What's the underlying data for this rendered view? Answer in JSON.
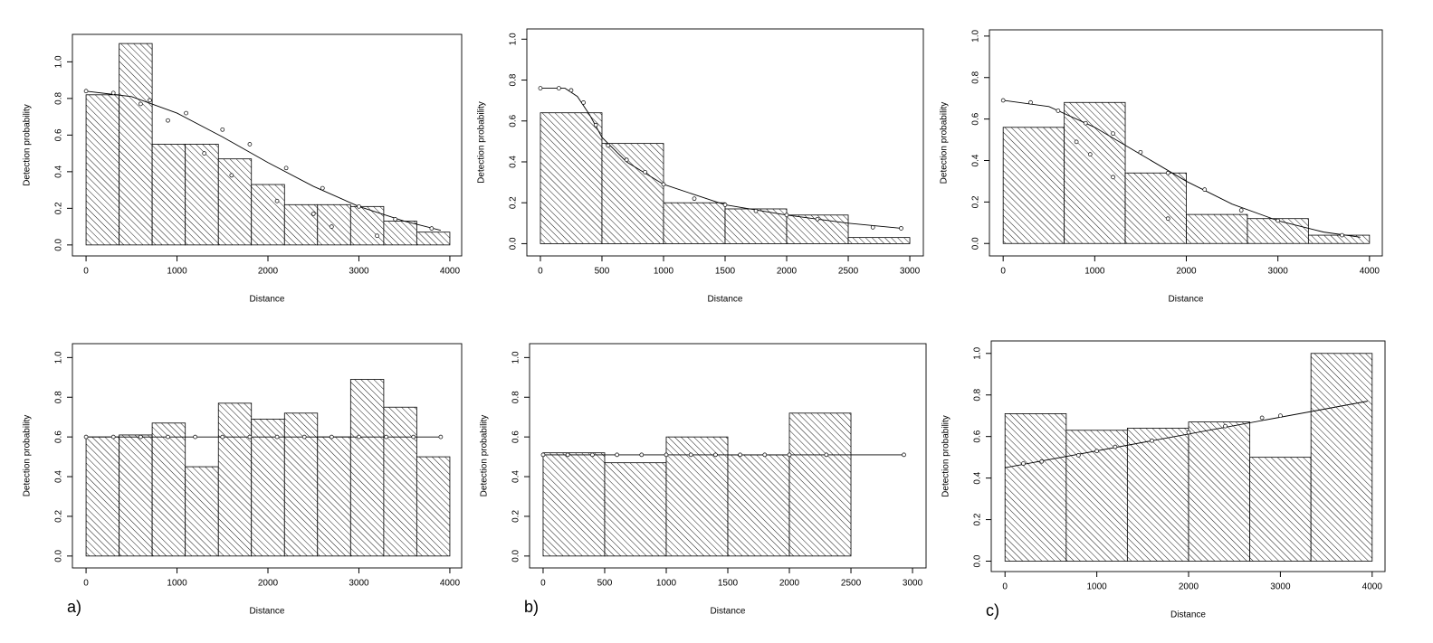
{
  "chart_data": [
    {
      "type": "histogram",
      "xlabel": "Distance",
      "ylabel": "Detection probability",
      "bins": [
        0,
        364,
        727,
        1091,
        1455,
        1818,
        2182,
        2545,
        2909,
        3273,
        3636,
        4000
      ],
      "values": [
        0.82,
        1.1,
        0.55,
        0.55,
        0.47,
        0.33,
        0.22,
        0.22,
        0.21,
        0.13,
        0.07
      ],
      "fit": {
        "x": [
          0,
          500,
          1000,
          1500,
          2000,
          2500,
          3000,
          3500,
          3900
        ],
        "values": [
          0.84,
          0.81,
          0.72,
          0.59,
          0.45,
          0.32,
          0.21,
          0.13,
          0.08
        ]
      },
      "points": {
        "x": [
          0,
          300,
          700,
          1100,
          1500,
          1800,
          2200,
          2600,
          3000,
          3400,
          3800,
          600,
          900,
          1300,
          1600,
          2100,
          2500,
          2700,
          3200
        ],
        "values": [
          0.84,
          0.83,
          0.79,
          0.72,
          0.63,
          0.55,
          0.42,
          0.31,
          0.21,
          0.14,
          0.09,
          0.77,
          0.68,
          0.5,
          0.38,
          0.24,
          0.17,
          0.1,
          0.05
        ]
      },
      "xlim": [
        -150,
        4130
      ],
      "ylim": [
        -0.06,
        1.15
      ],
      "xticks": [
        0,
        1000,
        2000,
        3000,
        4000
      ],
      "yticks": [
        {
          "value": 0,
          "label": "0.0"
        },
        0.2,
        0.4,
        0.6,
        0.8,
        {
          "value": 1,
          "label": "1.0"
        }
      ]
    },
    {
      "type": "histogram",
      "xlabel": "Distance",
      "ylabel": "Detection probability",
      "bins": [
        0,
        500,
        1000,
        1500,
        2000,
        2500,
        3000
      ],
      "values": [
        0.64,
        0.49,
        0.2,
        0.17,
        0.14,
        0.03
      ],
      "fit": {
        "x": [
          0,
          200,
          300,
          400,
          500,
          700,
          1000,
          1500,
          2000,
          2500,
          2930
        ],
        "values": [
          0.76,
          0.76,
          0.72,
          0.63,
          0.52,
          0.4,
          0.29,
          0.19,
          0.14,
          0.1,
          0.075
        ]
      },
      "points": {
        "x": [
          0,
          150,
          250,
          350,
          450,
          550,
          700,
          850,
          1000,
          1250,
          1500,
          1750,
          2000,
          2250,
          2700,
          2930
        ],
        "values": [
          0.76,
          0.76,
          0.75,
          0.69,
          0.58,
          0.48,
          0.41,
          0.35,
          0.29,
          0.22,
          0.19,
          0.16,
          0.14,
          0.12,
          0.08,
          0.075
        ]
      },
      "xlim": [
        -110,
        3110
      ],
      "ylim": [
        -0.06,
        1.05
      ],
      "xticks": [
        0,
        500,
        1000,
        1500,
        2000,
        2500,
        3000
      ],
      "yticks": [
        {
          "value": 0,
          "label": "0.0"
        },
        0.2,
        0.4,
        0.6,
        0.8,
        {
          "value": 1,
          "label": "1.0"
        }
      ]
    },
    {
      "type": "histogram",
      "xlabel": "Distance",
      "ylabel": "Detection probability",
      "bins": [
        0,
        667,
        1333,
        2000,
        2667,
        3333,
        4000
      ],
      "values": [
        0.56,
        0.68,
        0.34,
        0.14,
        0.12,
        0.04
      ],
      "fit": {
        "x": [
          0,
          500,
          1000,
          1500,
          2000,
          2500,
          3000,
          3500,
          3900
        ],
        "values": [
          0.69,
          0.66,
          0.56,
          0.43,
          0.3,
          0.19,
          0.11,
          0.055,
          0.03
        ]
      },
      "points": {
        "x": [
          0,
          300,
          600,
          900,
          1200,
          1500,
          1800,
          2200,
          2600,
          3000,
          3700,
          800,
          950,
          1200,
          1800
        ],
        "values": [
          0.69,
          0.68,
          0.64,
          0.58,
          0.53,
          0.44,
          0.34,
          0.26,
          0.16,
          0.11,
          0.04,
          0.49,
          0.43,
          0.32,
          0.12
        ]
      },
      "xlim": [
        -150,
        4140
      ],
      "ylim": [
        -0.06,
        1.03
      ],
      "xticks": [
        0,
        1000,
        2000,
        3000,
        4000
      ],
      "yticks": [
        {
          "value": 0,
          "label": "0.0"
        },
        0.2,
        0.4,
        0.6,
        0.8,
        {
          "value": 1,
          "label": "1.0"
        }
      ]
    },
    {
      "type": "histogram",
      "xlabel": "Distance",
      "ylabel": "Detection probability",
      "annotation": "a)",
      "bins": [
        0,
        364,
        727,
        1091,
        1455,
        1818,
        2182,
        2545,
        2909,
        3273,
        3636,
        4000
      ],
      "values": [
        0.6,
        0.61,
        0.67,
        0.45,
        0.77,
        0.69,
        0.72,
        0.6,
        0.89,
        0.75,
        0.5
      ],
      "fit": {
        "x": [
          0,
          3900
        ],
        "values": [
          0.6,
          0.6
        ]
      },
      "points": {
        "x": [
          0,
          300,
          600,
          900,
          1200,
          1500,
          1800,
          2100,
          2400,
          2700,
          3000,
          3300,
          3600,
          3900
        ],
        "values": [
          0.6,
          0.6,
          0.6,
          0.6,
          0.6,
          0.6,
          0.6,
          0.6,
          0.6,
          0.6,
          0.6,
          0.6,
          0.6,
          0.6
        ]
      },
      "xlim": [
        -150,
        4130
      ],
      "ylim": [
        -0.06,
        1.07
      ],
      "xticks": [
        0,
        1000,
        2000,
        3000,
        4000
      ],
      "yticks": [
        {
          "value": 0,
          "label": "0.0"
        },
        0.2,
        0.4,
        0.6,
        0.8,
        {
          "value": 1,
          "label": "1.0"
        }
      ]
    },
    {
      "type": "histogram",
      "xlabel": "Distance",
      "ylabel": "Detection probability",
      "annotation": "b)",
      "bins": [
        0,
        500,
        1000,
        1500,
        2000,
        2500
      ],
      "values": [
        0.52,
        0.47,
        0.6,
        0.51,
        0.72
      ],
      "fit": {
        "x": [
          0,
          2930
        ],
        "values": [
          0.51,
          0.51
        ]
      },
      "points": {
        "x": [
          0,
          200,
          400,
          600,
          800,
          1000,
          1200,
          1400,
          1600,
          1800,
          2000,
          2300,
          2930
        ],
        "values": [
          0.51,
          0.51,
          0.51,
          0.51,
          0.51,
          0.51,
          0.51,
          0.51,
          0.51,
          0.51,
          0.51,
          0.51,
          0.51
        ]
      },
      "xlim": [
        -110,
        3110
      ],
      "ylim": [
        -0.06,
        1.07
      ],
      "xticks": [
        0,
        500,
        1000,
        1500,
        2000,
        2500,
        3000
      ],
      "yticks": [
        {
          "value": 0,
          "label": "0.0"
        },
        0.2,
        0.4,
        0.6,
        0.8,
        {
          "value": 1,
          "label": "1.0"
        }
      ]
    },
    {
      "type": "histogram",
      "xlabel": "Distance",
      "ylabel": "Detection probability",
      "annotation": "c)",
      "bins": [
        0,
        667,
        1333,
        2000,
        2667,
        3333,
        4000
      ],
      "values": [
        0.71,
        0.63,
        0.64,
        0.67,
        0.5,
        1.0
      ],
      "fit": {
        "x": [
          0,
          3950
        ],
        "values": [
          0.45,
          0.77
        ]
      },
      "points": {
        "x": [
          200,
          400,
          800,
          1000,
          1200,
          1600,
          2000,
          2400,
          2800,
          3000
        ],
        "values": [
          0.47,
          0.48,
          0.51,
          0.53,
          0.55,
          0.58,
          0.62,
          0.65,
          0.69,
          0.7
        ]
      },
      "xlim": [
        -150,
        4140
      ],
      "ylim": [
        -0.05,
        1.06
      ],
      "xticks": [
        0,
        1000,
        2000,
        3000,
        4000
      ],
      "yticks": [
        {
          "value": 0,
          "label": "0.0"
        },
        0.2,
        0.4,
        0.6,
        0.8,
        {
          "value": 1,
          "label": "1.0"
        }
      ]
    }
  ]
}
